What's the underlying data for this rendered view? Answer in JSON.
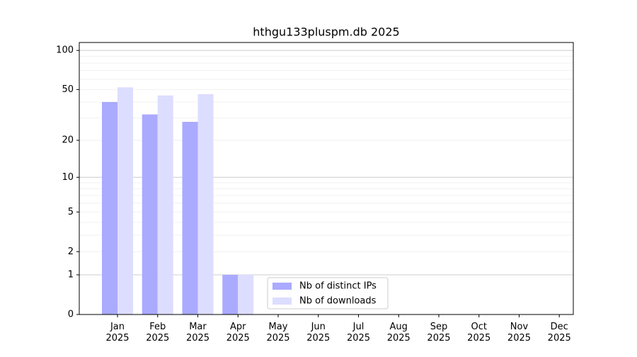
{
  "chart_data": {
    "type": "bar",
    "title": "hthgu133pluspm.db 2025",
    "categories": [
      "Jan 2025",
      "Feb 2025",
      "Mar 2025",
      "Apr 2025",
      "May 2025",
      "Jun 2025",
      "Jul 2025",
      "Aug 2025",
      "Sep 2025",
      "Oct 2025",
      "Nov 2025",
      "Dec 2025"
    ],
    "series": [
      {
        "name": "Nb of distinct IPs",
        "color": "#aaaaff",
        "values": [
          40,
          32,
          28,
          1,
          0,
          0,
          0,
          0,
          0,
          0,
          0,
          0
        ]
      },
      {
        "name": "Nb of downloads",
        "color": "#ddddff",
        "values": [
          52,
          45,
          46,
          1,
          0,
          0,
          0,
          0,
          0,
          0,
          0,
          0
        ]
      }
    ],
    "y_scale": "log1p",
    "ylim": [
      0,
      115
    ],
    "yticks": [
      0,
      1,
      2,
      5,
      10,
      20,
      50,
      100
    ],
    "y_major_grid": [
      1,
      10,
      100
    ],
    "y_minor_grid": [
      2,
      3,
      4,
      5,
      6,
      7,
      8,
      9,
      20,
      30,
      40,
      50,
      60,
      70,
      80,
      90
    ],
    "grid": true,
    "legend": "lower center"
  }
}
